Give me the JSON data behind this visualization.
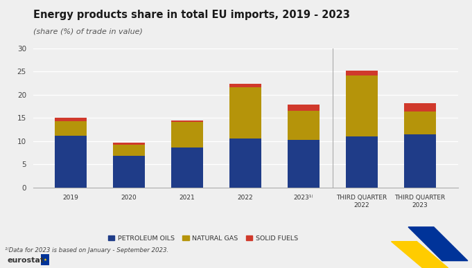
{
  "title": "Energy products share in total EU imports, 2019 - 2023",
  "subtitle": "(share (%) of trade in value)",
  "categories": [
    "2019",
    "2020",
    "2021",
    "2022",
    "2023¹⁽",
    "THIRD QUARTER\n2022",
    "THIRD QUARTER\n2023"
  ],
  "petroleum_oils": [
    11.1,
    6.9,
    8.7,
    10.6,
    10.3,
    11.0,
    11.5
  ],
  "natural_gas": [
    3.2,
    2.4,
    5.5,
    11.0,
    6.3,
    13.2,
    4.9
  ],
  "solid_fuels": [
    0.7,
    0.4,
    0.3,
    0.8,
    1.2,
    1.0,
    1.7
  ],
  "petroleum_color": "#1f3c88",
  "natural_gas_color": "#b5940a",
  "solid_fuels_color": "#d0392b",
  "background_color": "#efefef",
  "grid_color": "#ffffff",
  "ylim": [
    0,
    30
  ],
  "yticks": [
    0,
    5,
    10,
    15,
    20,
    25,
    30
  ],
  "footnote": "¹⁽Data for 2023 is based on January - September 2023.",
  "bar_width": 0.55
}
